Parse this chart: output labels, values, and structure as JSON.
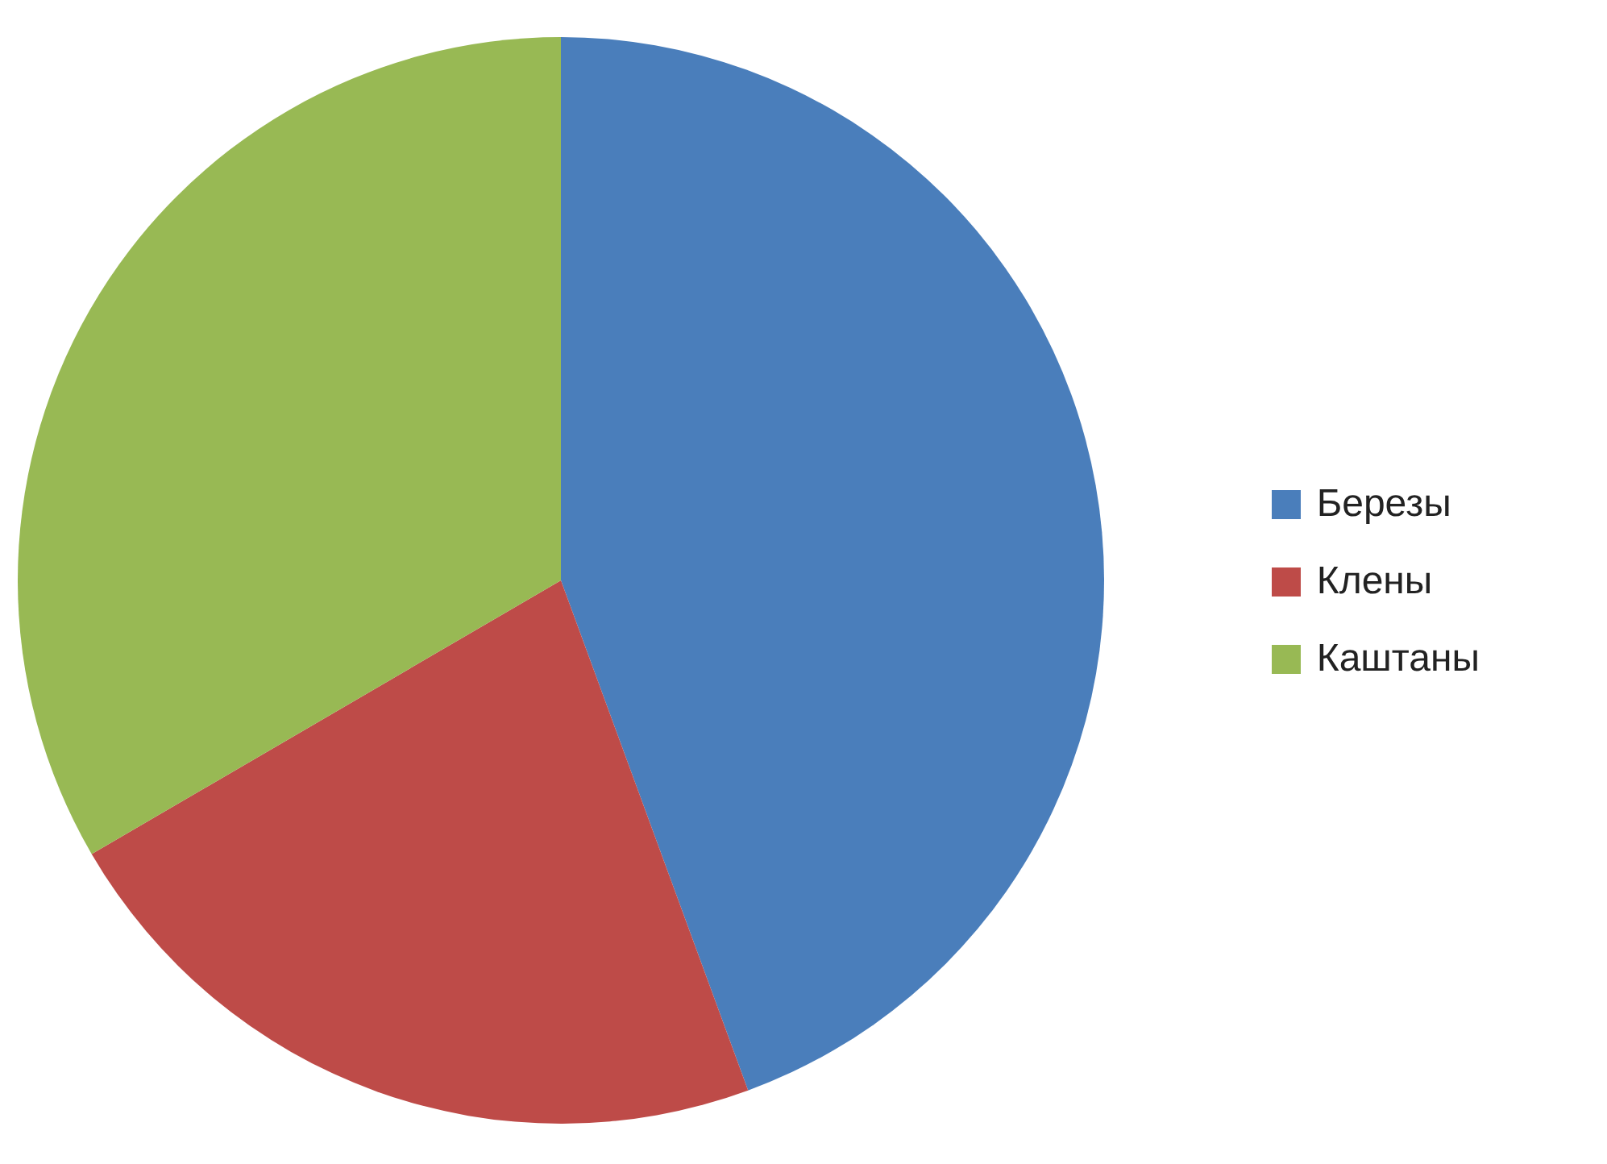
{
  "chart_data": {
    "type": "pie",
    "categories": [
      "Березы",
      "Клены",
      "Каштаны"
    ],
    "values": [
      44.4,
      22.2,
      33.4
    ],
    "colors": [
      "#4a7ebb",
      "#be4b48",
      "#98b954"
    ],
    "legend": "right"
  }
}
